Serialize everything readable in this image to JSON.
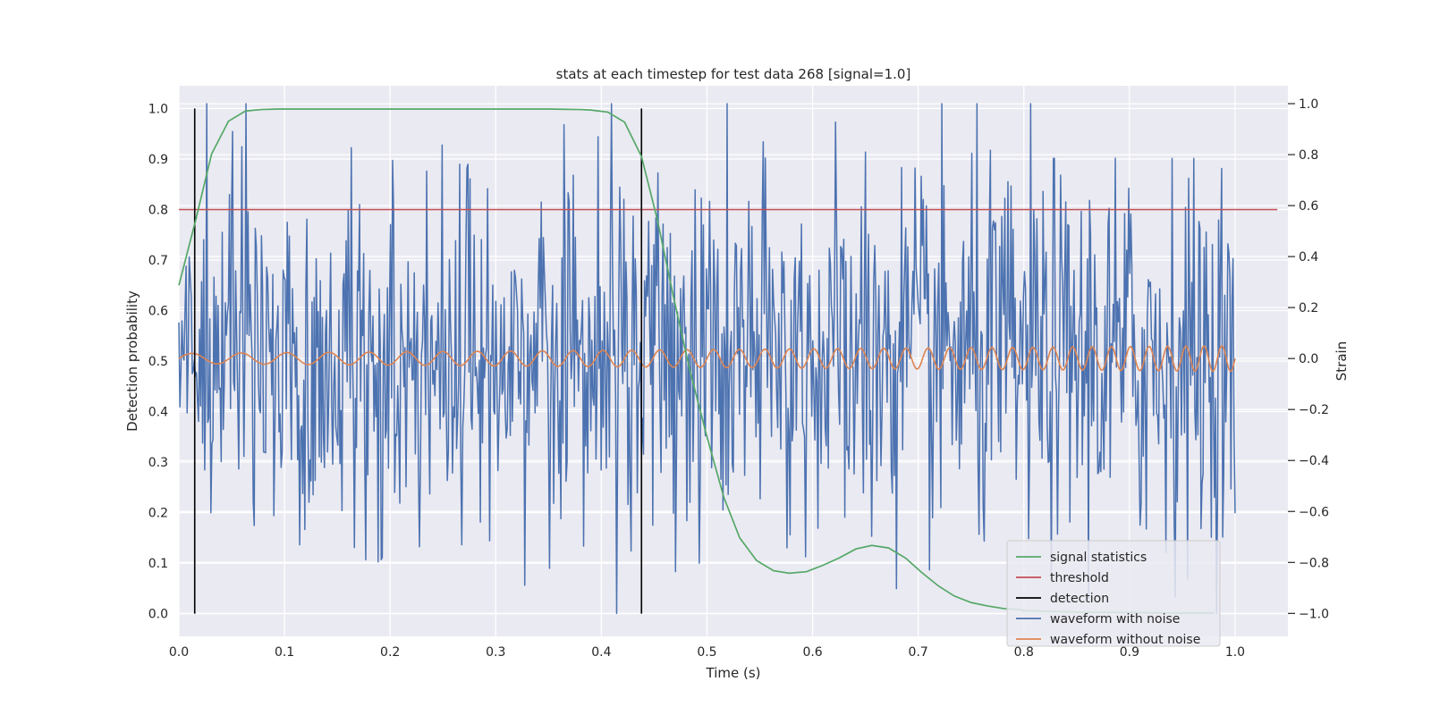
{
  "chart_data": {
    "type": "line",
    "title": "stats at each timestep for test data 268 [signal=1.0]",
    "xlabel": "Time (s)",
    "ylabel": "Detection probability",
    "ylabel_right": "Strain",
    "xlim": [
      0.0,
      1.05
    ],
    "ylim": [
      -0.045,
      1.045
    ],
    "ylim_right": [
      -1.09,
      1.07
    ],
    "x_ticks": [
      "0.0",
      "0.1",
      "0.2",
      "0.3",
      "0.4",
      "0.5",
      "0.6",
      "0.7",
      "0.8",
      "0.9",
      "1.0"
    ],
    "y_ticks": [
      "0.0",
      "0.1",
      "0.2",
      "0.3",
      "0.4",
      "0.5",
      "0.6",
      "0.7",
      "0.8",
      "0.9",
      "1.0"
    ],
    "y_right_ticks": [
      "−1.0",
      "−0.8",
      "−0.6",
      "−0.4",
      "−0.2",
      "0.0",
      "0.2",
      "0.4",
      "0.6",
      "0.8",
      "1.0"
    ],
    "grid": true,
    "background_color": "#eaeaf2",
    "legend_position": "lower right",
    "series": [
      {
        "name": "signal statistics",
        "axis": "left",
        "color": "#55a868",
        "x": [
          0.0,
          0.016,
          0.031,
          0.047,
          0.063,
          0.078,
          0.094,
          0.125,
          0.2,
          0.3,
          0.35,
          0.38,
          0.39,
          0.406,
          0.422,
          0.438,
          0.453,
          0.469,
          0.484,
          0.5,
          0.516,
          0.531,
          0.547,
          0.563,
          0.578,
          0.594,
          0.609,
          0.625,
          0.641,
          0.656,
          0.672,
          0.688,
          0.703,
          0.719,
          0.734,
          0.75,
          0.766,
          0.781,
          0.797,
          0.8,
          0.85,
          0.9,
          0.95,
          0.98
        ],
        "y": [
          0.65,
          0.78,
          0.91,
          0.975,
          0.995,
          0.998,
          0.999,
          0.999,
          0.999,
          0.999,
          0.999,
          0.998,
          0.997,
          0.993,
          0.973,
          0.905,
          0.78,
          0.62,
          0.48,
          0.35,
          0.23,
          0.15,
          0.105,
          0.085,
          0.08,
          0.083,
          0.095,
          0.11,
          0.128,
          0.135,
          0.13,
          0.11,
          0.082,
          0.055,
          0.035,
          0.022,
          0.015,
          0.01,
          0.008,
          0.006,
          0.003,
          0.002,
          0.001,
          0.001
        ]
      },
      {
        "name": "threshold",
        "axis": "left",
        "color": "#c44e52",
        "x": [
          0.0,
          1.04
        ],
        "y": [
          0.8,
          0.8
        ]
      },
      {
        "name": "detection",
        "axis": "left",
        "color": "#000000",
        "x_positions": [
          0.015,
          0.438
        ],
        "y_range": [
          0.0,
          1.0
        ]
      },
      {
        "name": "waveform with noise",
        "axis": "right",
        "color": "#4c72b0",
        "description": "dense noisy strain series, 1024 samples over 0–1 s, values roughly within [-1.0, 1.0]",
        "n_points": 1024,
        "x_range": [
          0.0,
          1.0
        ],
        "y_range_approx": [
          -1.0,
          1.0
        ]
      },
      {
        "name": "waveform without noise",
        "axis": "right",
        "color": "#dd8452",
        "description": "chirp sinusoid, amplitude grows from ~0.02 to ~0.05, frequency increases from ~20 to ~60 cycles/s",
        "x_range": [
          0.0,
          1.0
        ],
        "amplitude_start": 0.02,
        "amplitude_end": 0.05,
        "freq_start": 20,
        "freq_end": 60
      }
    ]
  }
}
